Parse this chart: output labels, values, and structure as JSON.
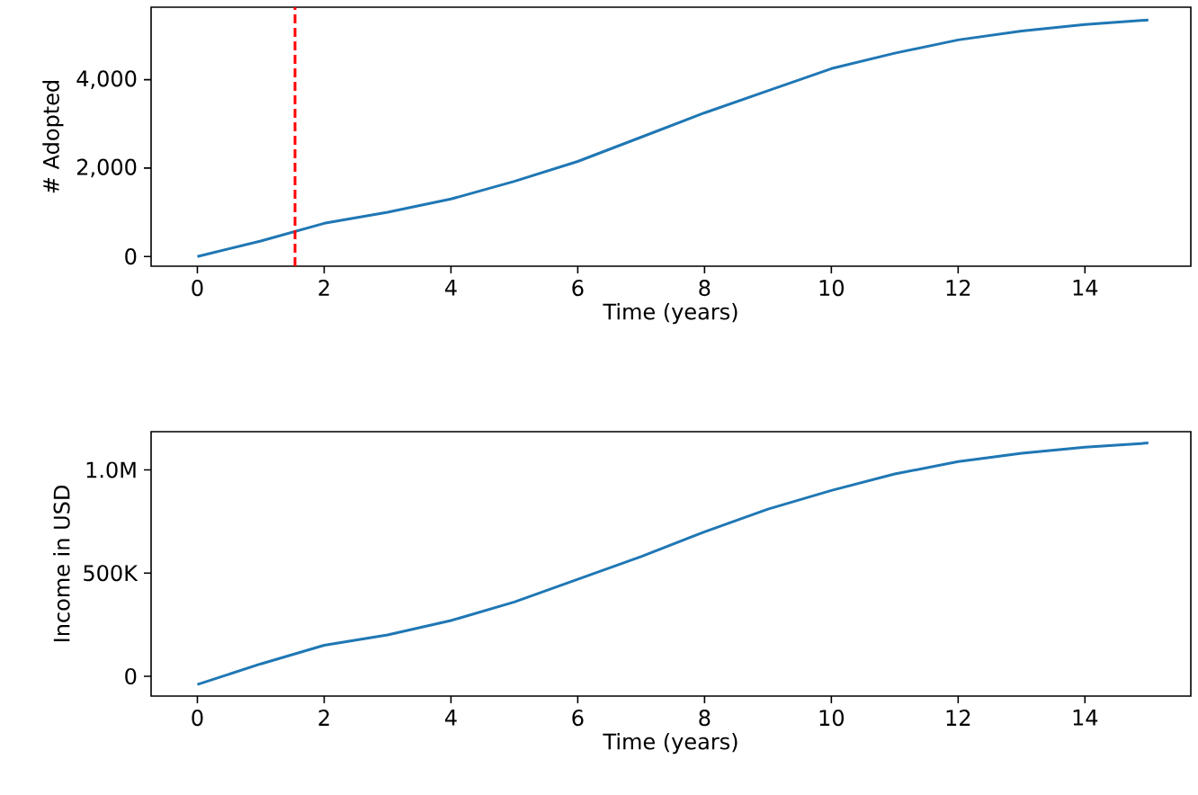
{
  "chart_data": [
    {
      "type": "line",
      "xlabel": "Time (years)",
      "ylabel": "# Adopted",
      "x": [
        0,
        1,
        2,
        3,
        4,
        5,
        6,
        7,
        8,
        9,
        10,
        11,
        12,
        13,
        14,
        15
      ],
      "series": [
        {
          "color": "#1f77b4",
          "values": [
            0,
            350,
            750,
            1000,
            1300,
            1700,
            2150,
            2700,
            3250,
            3750,
            4250,
            4600,
            4900,
            5100,
            5250,
            5350
          ]
        }
      ],
      "xlim": [
        -0.73,
        15.67
      ],
      "ylim": [
        -220,
        5640
      ],
      "xticks": [
        0,
        2,
        4,
        6,
        8,
        10,
        12,
        14
      ],
      "yticks": [
        {
          "value": 0,
          "label": "0"
        },
        {
          "value": 2000,
          "label": "2,000"
        },
        {
          "value": 4000,
          "label": "4,000"
        }
      ],
      "ref_lines": [
        {
          "axis": "x",
          "value": 1.54,
          "color": "#ff0000",
          "line_style": "dashed"
        }
      ]
    },
    {
      "type": "line",
      "xlabel": "Time (years)",
      "ylabel": "Income in USD",
      "x": [
        0,
        1,
        2,
        3,
        4,
        5,
        6,
        7,
        8,
        9,
        10,
        11,
        12,
        13,
        14,
        15
      ],
      "series": [
        {
          "color": "#1f77b4",
          "values": [
            -40000,
            60000,
            150000,
            200000,
            270000,
            360000,
            470000,
            580000,
            700000,
            810000,
            900000,
            980000,
            1040000,
            1080000,
            1110000,
            1130000
          ]
        }
      ],
      "xlim": [
        -0.73,
        15.67
      ],
      "ylim": [
        -96000,
        1185000
      ],
      "xticks": [
        0,
        2,
        4,
        6,
        8,
        10,
        12,
        14
      ],
      "yticks": [
        {
          "value": 0,
          "label": "0"
        },
        {
          "value": 500000,
          "label": "500K"
        },
        {
          "value": 1000000,
          "label": "1.0M"
        }
      ]
    }
  ]
}
